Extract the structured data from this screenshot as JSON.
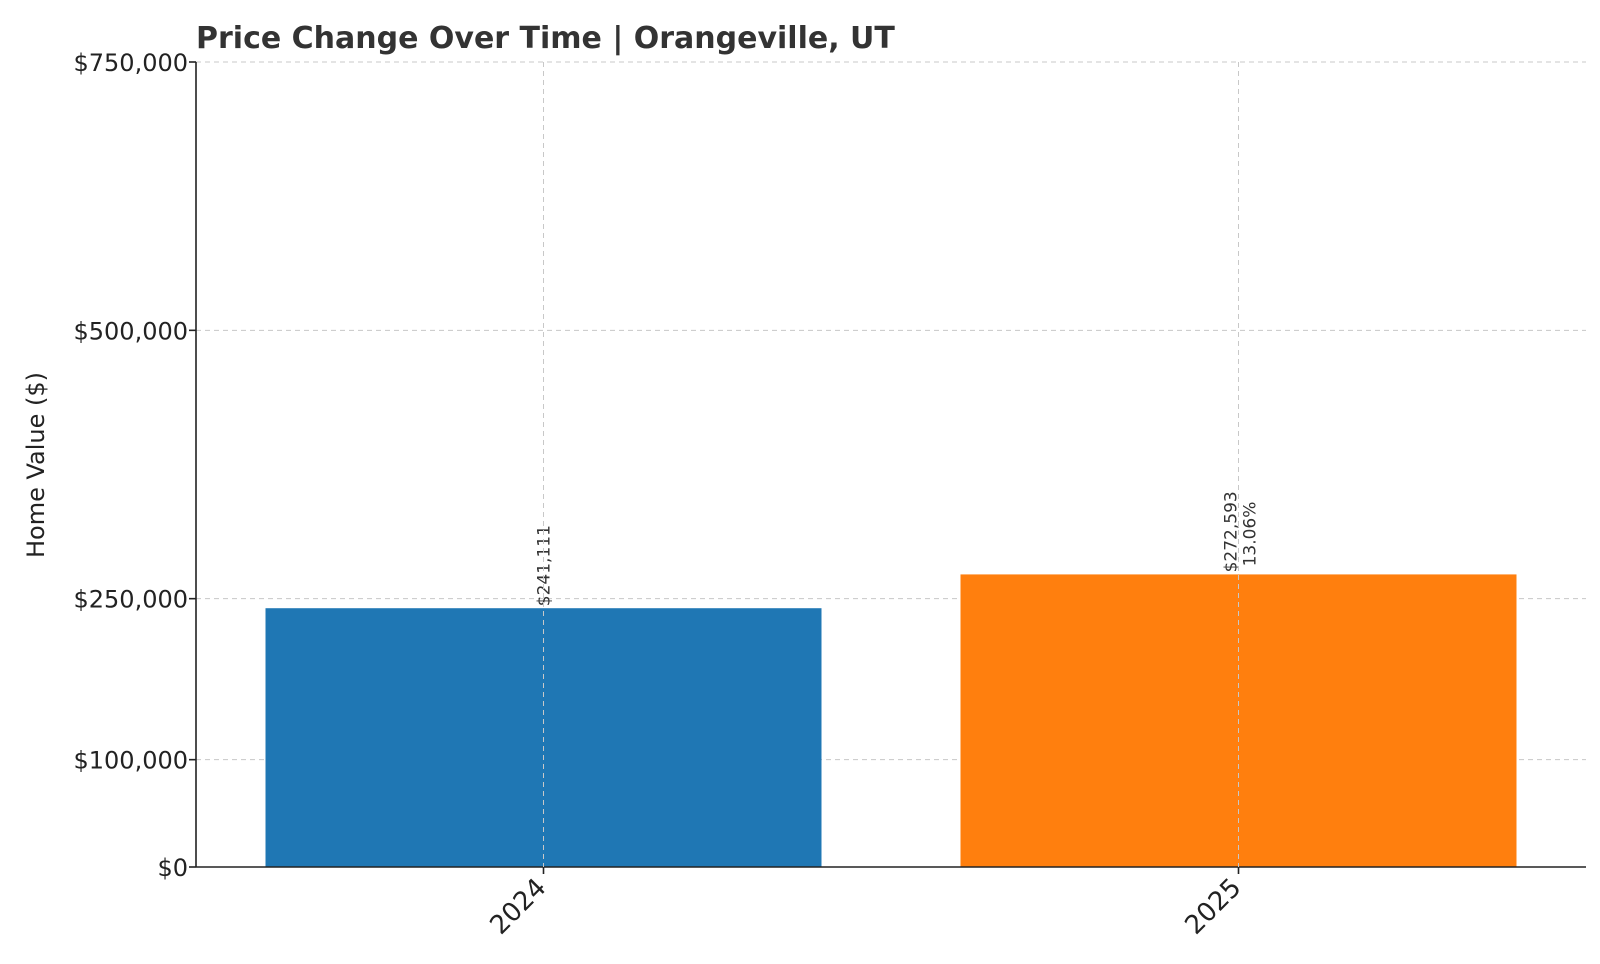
{
  "chart_data": {
    "type": "bar",
    "title": "Price Change Over Time | Orangeville, UT",
    "xlabel": "",
    "ylabel": "Home Value ($)",
    "categories": [
      "2024",
      "2025"
    ],
    "values": [
      241111,
      272593
    ],
    "colors": [
      "#1f77b4",
      "#ff7f0e"
    ],
    "value_labels": [
      "$241,111",
      "$272,593"
    ],
    "change_labels": [
      "",
      "13.06%"
    ],
    "yticks": [
      0,
      100000,
      250000,
      500000,
      750000
    ],
    "ytick_labels": [
      "$0",
      "$100,000",
      "$250,000",
      "$500,000",
      "$750,000"
    ],
    "ylim": [
      0,
      750000
    ],
    "grid": true,
    "legend": "none"
  }
}
